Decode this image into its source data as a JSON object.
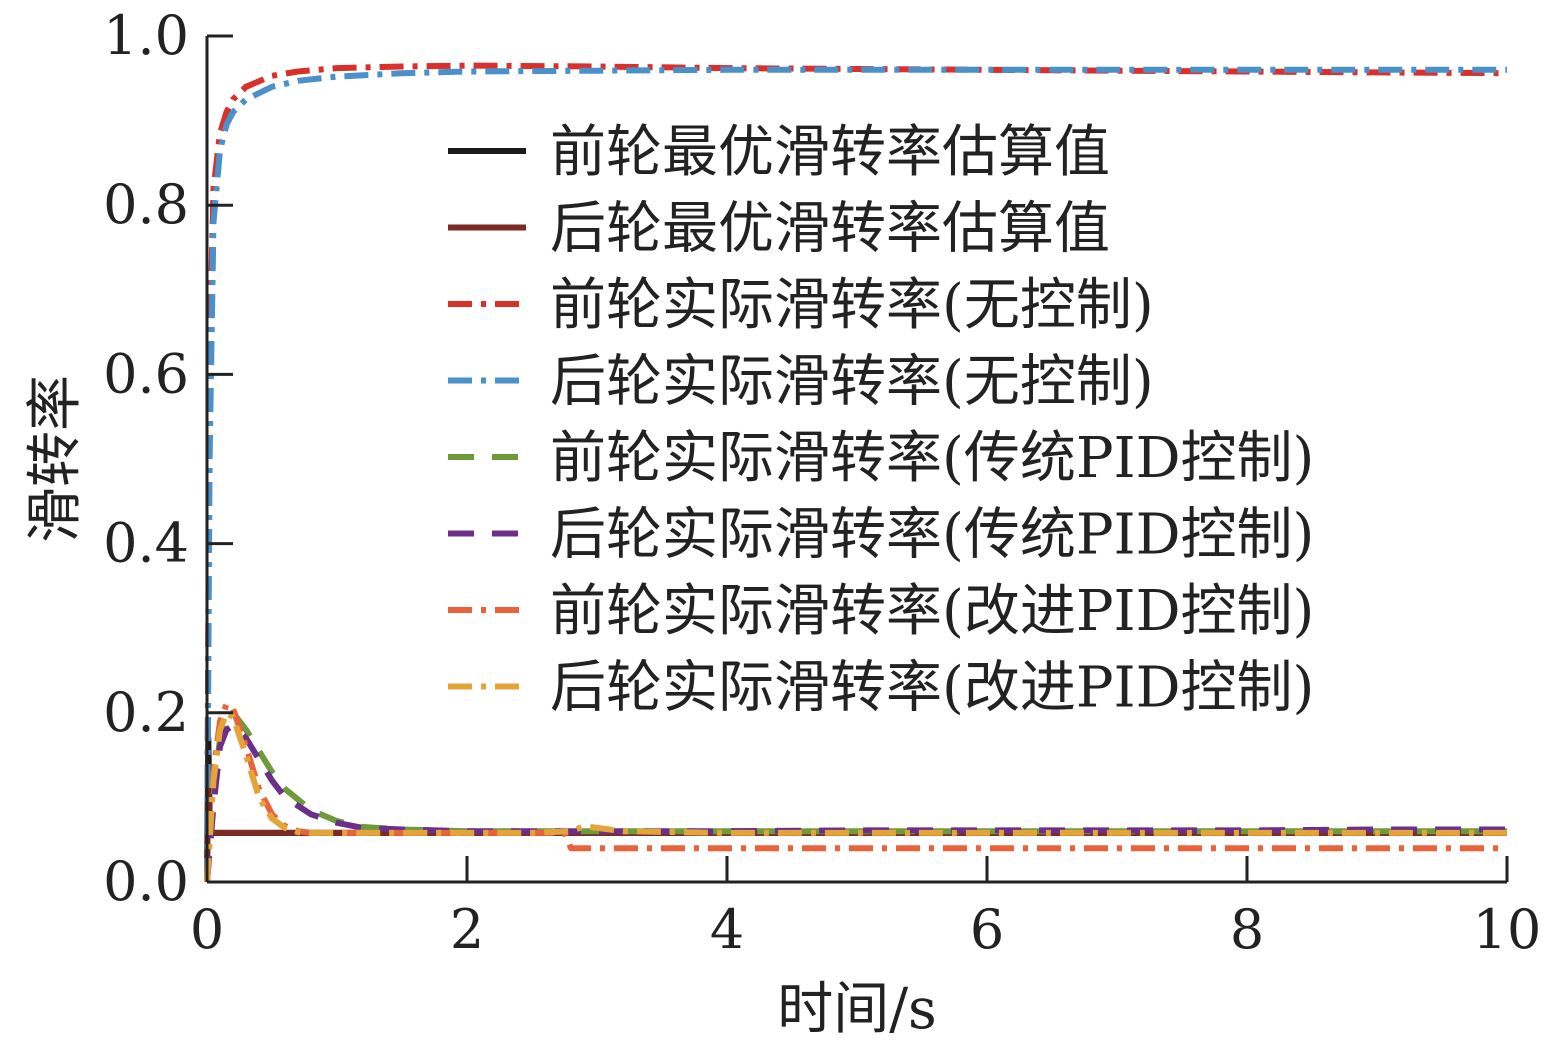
{
  "chart_data": {
    "type": "line",
    "title": "",
    "xlabel": "时间/s",
    "ylabel": "滑转率",
    "xlim": [
      0,
      10
    ],
    "ylim": [
      0,
      1.0
    ],
    "xticks": [
      0,
      2,
      4,
      6,
      8,
      10
    ],
    "xtick_labels": [
      "0",
      "2",
      "4",
      "6",
      "8",
      "10"
    ],
    "yticks": [
      0,
      0.2,
      0.4,
      0.6,
      0.8,
      1.0
    ],
    "ytick_labels": [
      "0.0",
      "0.2",
      "0.4",
      "0.6",
      "0.8",
      "1.0"
    ],
    "grid": false,
    "legend_position": "upper-right",
    "series": [
      {
        "name": "前轮最优滑转率估算值",
        "color": "#1a1a1a",
        "dash": "solid",
        "x": [
          0,
          0.01,
          0.02,
          0.03,
          0.05,
          10
        ],
        "y": [
          0,
          0.17,
          0.08,
          0.058,
          0.058,
          0.058
        ]
      },
      {
        "name": "后轮最优滑转率估算值",
        "color": "#7b2a24",
        "dash": "solid",
        "x": [
          0,
          0.01,
          0.02,
          0.04,
          0.06,
          10
        ],
        "y": [
          0,
          0.13,
          0.07,
          0.058,
          0.058,
          0.058
        ]
      },
      {
        "name": "前轮实际滑转率(无控制)",
        "color": "#d9302c",
        "dash": "dashdot",
        "x": [
          0,
          0.02,
          0.05,
          0.1,
          0.15,
          0.2,
          0.3,
          0.5,
          0.7,
          1.0,
          1.5,
          2,
          3,
          4,
          5,
          6,
          7,
          8,
          9,
          10
        ],
        "y": [
          0,
          0.62,
          0.82,
          0.885,
          0.91,
          0.925,
          0.94,
          0.953,
          0.958,
          0.962,
          0.964,
          0.965,
          0.964,
          0.962,
          0.961,
          0.96,
          0.959,
          0.958,
          0.957,
          0.956
        ]
      },
      {
        "name": "后轮实际滑转率(无控制)",
        "color": "#4a90c9",
        "dash": "dashdot",
        "x": [
          0,
          0.02,
          0.05,
          0.1,
          0.15,
          0.2,
          0.3,
          0.5,
          0.7,
          1.0,
          1.5,
          2,
          3,
          4,
          5,
          6,
          7,
          8,
          9,
          10
        ],
        "y": [
          0,
          0.5,
          0.78,
          0.865,
          0.895,
          0.91,
          0.925,
          0.94,
          0.947,
          0.952,
          0.956,
          0.958,
          0.959,
          0.96,
          0.96,
          0.96,
          0.96,
          0.96,
          0.96,
          0.96
        ]
      },
      {
        "name": "前轮实际滑转率(传统PID控制)",
        "color": "#6f9a3a",
        "dash": "dashed",
        "x": [
          0,
          0.05,
          0.1,
          0.15,
          0.2,
          0.3,
          0.4,
          0.5,
          0.6,
          0.8,
          1.0,
          1.2,
          1.5,
          2,
          3,
          4,
          5,
          6,
          7,
          8,
          9,
          10
        ],
        "y": [
          0,
          0.1,
          0.17,
          0.19,
          0.2,
          0.18,
          0.155,
          0.13,
          0.11,
          0.085,
          0.072,
          0.065,
          0.062,
          0.06,
          0.06,
          0.06,
          0.06,
          0.06,
          0.06,
          0.06,
          0.06,
          0.06
        ]
      },
      {
        "name": "后轮实际滑转率(传统PID控制)",
        "color": "#6b2f8a",
        "dash": "dashed",
        "x": [
          0,
          0.05,
          0.1,
          0.15,
          0.2,
          0.3,
          0.4,
          0.5,
          0.6,
          0.8,
          1.0,
          1.2,
          1.5,
          2,
          3,
          4,
          5,
          6,
          7,
          8,
          9,
          10
        ],
        "y": [
          0,
          0.09,
          0.16,
          0.18,
          0.185,
          0.17,
          0.145,
          0.12,
          0.1,
          0.08,
          0.07,
          0.064,
          0.062,
          0.06,
          0.06,
          0.06,
          0.061,
          0.061,
          0.061,
          0.061,
          0.062,
          0.062
        ]
      },
      {
        "name": "前轮实际滑转率(改进PID控制)",
        "color": "#e8623a",
        "dash": "dashdot",
        "x": [
          0,
          0.05,
          0.1,
          0.15,
          0.2,
          0.3,
          0.4,
          0.5,
          0.6,
          0.7,
          0.8,
          1.0,
          1.5,
          2,
          2.5,
          2.75,
          2.8,
          3,
          4,
          5,
          6,
          7,
          8,
          9,
          10
        ],
        "y": [
          0,
          0.13,
          0.19,
          0.21,
          0.205,
          0.16,
          0.11,
          0.08,
          0.066,
          0.06,
          0.058,
          0.058,
          0.058,
          0.058,
          0.058,
          0.058,
          0.04,
          0.04,
          0.04,
          0.04,
          0.04,
          0.04,
          0.04,
          0.04,
          0.04
        ]
      },
      {
        "name": "后轮实际滑转率(改进PID控制)",
        "color": "#e3a53a",
        "dash": "dashdot",
        "x": [
          0,
          0.05,
          0.1,
          0.15,
          0.2,
          0.3,
          0.4,
          0.5,
          0.6,
          0.7,
          0.8,
          1.0,
          1.5,
          2,
          2.5,
          2.8,
          2.9,
          3.0,
          3.2,
          4,
          5,
          6,
          7,
          8,
          9,
          10
        ],
        "y": [
          0,
          0.12,
          0.18,
          0.2,
          0.195,
          0.15,
          0.1,
          0.075,
          0.064,
          0.059,
          0.058,
          0.058,
          0.058,
          0.058,
          0.058,
          0.06,
          0.066,
          0.064,
          0.06,
          0.058,
          0.058,
          0.058,
          0.058,
          0.058,
          0.058,
          0.058
        ]
      }
    ]
  }
}
